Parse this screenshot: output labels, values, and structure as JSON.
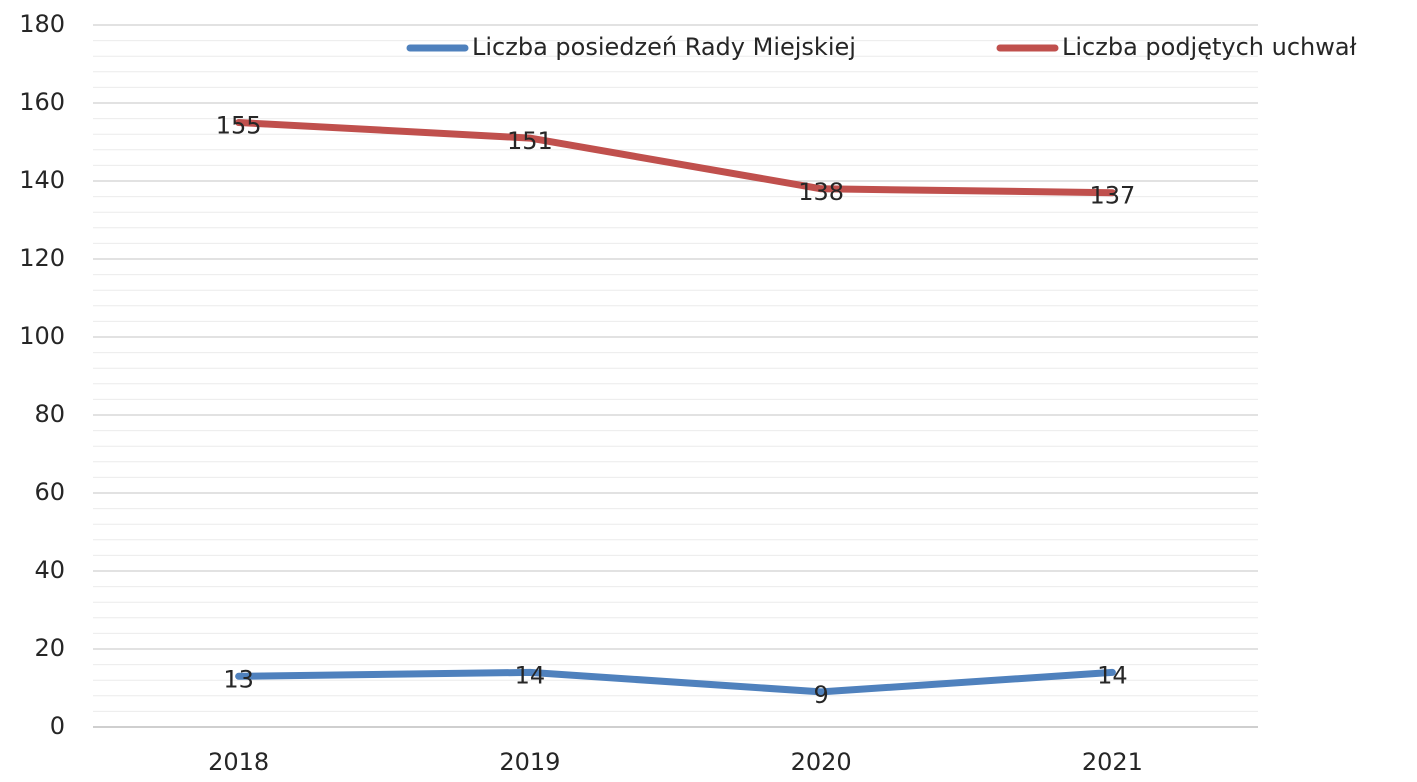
{
  "chart_data": {
    "type": "line",
    "categories": [
      "2018",
      "2019",
      "2020",
      "2021"
    ],
    "series": [
      {
        "name": "Liczba posiedzeń Rady Miejskiej",
        "color": "#4f81bd",
        "values": [
          13,
          14,
          9,
          14
        ]
      },
      {
        "name": "Liczba podjętych uchwał",
        "color": "#c0504d",
        "values": [
          155,
          151,
          138,
          137
        ]
      }
    ],
    "ylim": [
      0,
      180
    ],
    "yticks": [
      0,
      20,
      40,
      60,
      80,
      100,
      120,
      140,
      160,
      180
    ],
    "grid": true,
    "minor_grid": true,
    "legend": "top",
    "data_labels": true
  }
}
